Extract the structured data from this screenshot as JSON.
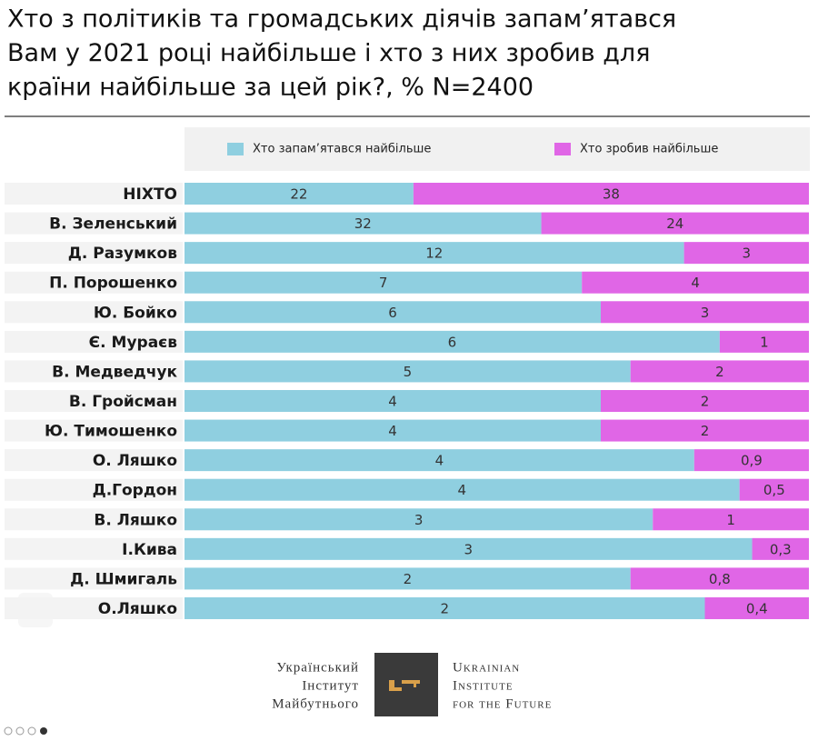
{
  "chart_data": {
    "type": "bar",
    "title": [
      "Хто з політиків та громадських діячів запам’ятався",
      "Вам у 2021 році найбільше і хто з них зробив для",
      "країни найбільше за цей рік?, % N=2400"
    ],
    "categories": [
      "НІХТО",
      "В. Зеленський",
      "Д. Разумков",
      "П. Порошенко",
      "Ю. Бойко",
      "Є. Мураєв",
      "В. Медведчук",
      "В. Гройсман",
      "Ю. Тимошенко",
      "О. Ляшко",
      "Д.Гордон",
      "В. Ляшко",
      "І.Кива",
      "Д. Шмигаль",
      "О.Ляшко"
    ],
    "series": [
      {
        "name": "Хто запам’ятався найбільше",
        "color": "#8fcfe0",
        "values": [
          22,
          32,
          12,
          7,
          6,
          6,
          5,
          4,
          4,
          4,
          4,
          3,
          3,
          2,
          2
        ],
        "value_labels": [
          "22",
          "32",
          "12",
          "7",
          "6",
          "6",
          "5",
          "4",
          "4",
          "4",
          "4",
          "3",
          "3",
          "2",
          "2"
        ]
      },
      {
        "name": "Хто зробив найбільше",
        "color": "#e066e6",
        "values": [
          38,
          24,
          3,
          4,
          3,
          1,
          2,
          2,
          2,
          0.9,
          0.5,
          1,
          0.3,
          0.8,
          0.4
        ],
        "value_labels": [
          "38",
          "24",
          "3",
          "4",
          "3",
          "1",
          "2",
          "2",
          "2",
          "0,9",
          "0,5",
          "1",
          "0,3",
          "0,8",
          "0,4"
        ]
      }
    ],
    "stacking": "percent"
  },
  "footer": {
    "logo_ua": [
      "Український",
      "Інститут",
      "Майбутнього"
    ],
    "logo_en": [
      "Ukrainian",
      "Institute",
      "for the Future"
    ]
  }
}
